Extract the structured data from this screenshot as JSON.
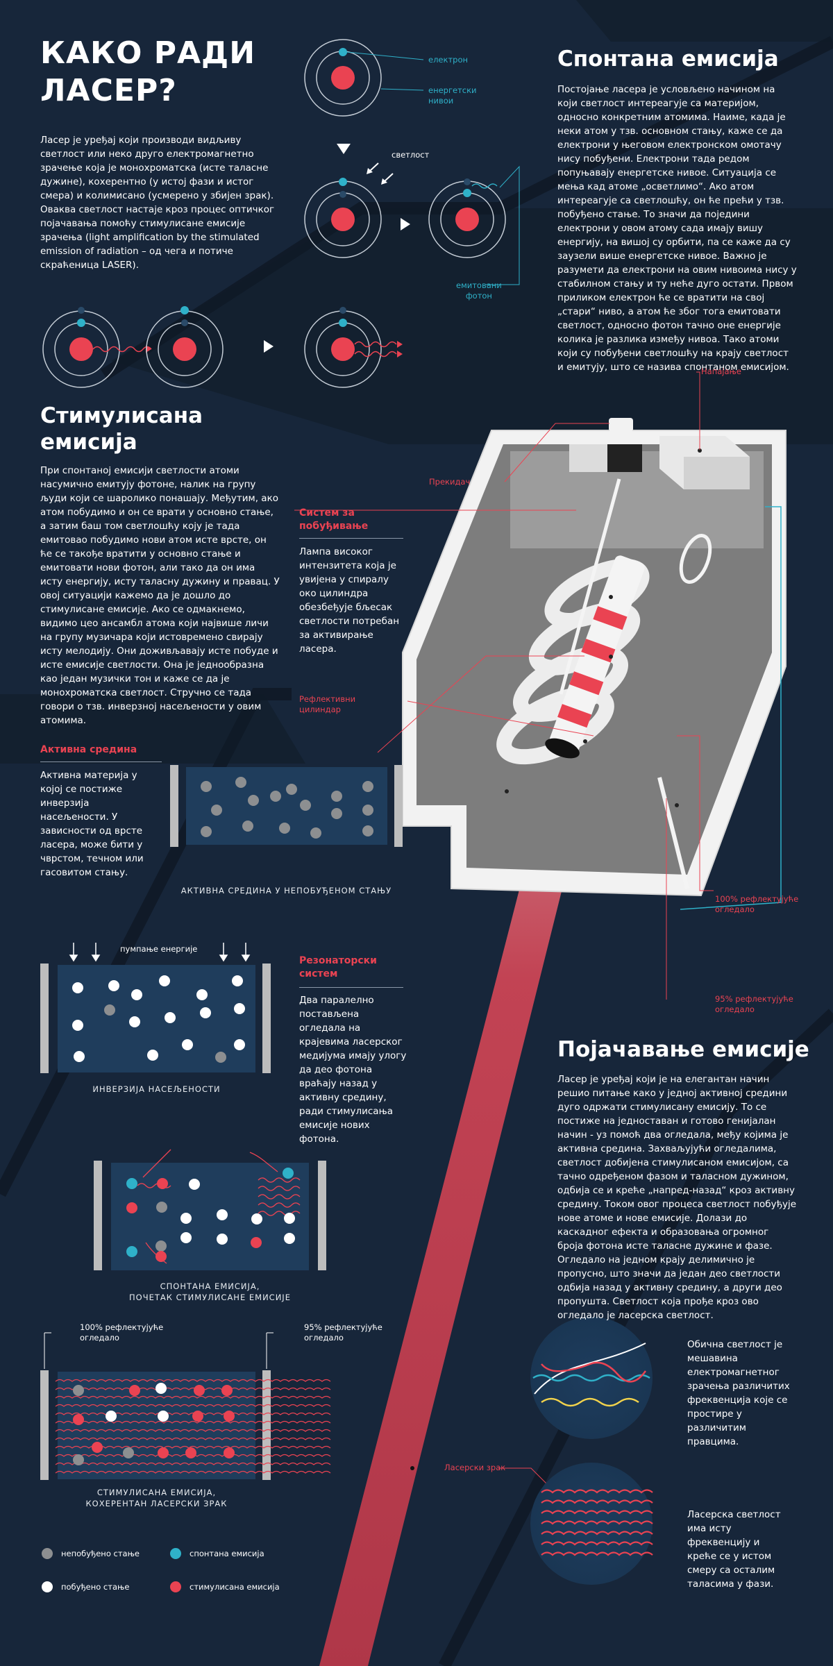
{
  "title": "КАКО РАДИ\nЛАСЕР?",
  "intro": "Ласер је уређај који производи видљиву светлост или неко друго електромагнетно зрачење која је монохроматска (исте таласне дужине), кохерентно (у истој фази и истог смера) и колимисано (усмерено у збијен зрак). Оваква светлост настаје кроз процес оптичког појачавања помоћу стимулисане емисије зрачења (light amplification by the stimulated emission of radiation – од чега и потиче скраћеница LASER).",
  "atom_labels": {
    "electron": "електрон",
    "energy_levels": "енергетски\nнивои",
    "light": "светлост",
    "emitted_photon": "емитовани\nфотон"
  },
  "spontaneous": {
    "title": "Спонтана емисија",
    "text": "Постојање ласера је условљено начином на који светлост интереагује са материјом, односно конкретним атомима. Наиме, када је неки атом у тзв. основном стању, каже се да електрони у његовом електронском омотачу нису побуђени. Електрони тада редом попуњавају енергетске нивое. Ситуација се мења кад атоме „осветлимо“. Ако атом интереагује са светлошћу, он ће прећи у тзв. побуђено стање. То значи да поједини електрони у овом атому сада имају вишу енергију, на вишој су орбити, па се каже да су заузели више енергетске нивое. Важно је разумети да електрони на овим нивоима нису у стабилном стању и ту неће дуго остати. Првом приликом електрон ће се вратити на свој „стари“ ниво, а атом ће због тога емитовати светлост, односно фотон тачно оне енергије колика је разлика између нивоа. Тако атоми који су побуђени светлошћу на крају светлост и емитују, што се назива спонтаном емисијом."
  },
  "stimulated": {
    "title": "Стимулисана\nемисија",
    "text": "При спонтаној емисији светлости атоми насумично емитују фотоне, налик на групу људи који се шаролико понашају. Међутим, ако атом побудимо и он се врати у основно стање, а затим баш том светлошћу коју је тада емитовао побудимо нови атом исте врсте, он ће се такође вратити у основно стање и емитовати нови фотон, али тако да он има исту енергију, исту таласну дужину и правац. У овој ситуацији кажемо да је дошло до стимулисане емисије. Ако се одмакнемо, видимо цео ансамбл атома који највише личи на групу музичара који истовремено свирају исту мелодију. Они доживљавају исте побуде и исте емисије светлости. Она је једнообразна као један музички тон и каже се да је монохроматска светлост. Стручно се тада говори о тзв. инверзној насељености у овим атомима."
  },
  "excitation_system": {
    "title": "Систем за\nпобуђивање",
    "text": "Лампа високог интензитета која је увијена у спиралу око цилиндра обезбеђује бљесак светлости потребан за активирање ласера."
  },
  "active_medium": {
    "title": "Активна средина",
    "text": "Активна материја у којој се постиже инверзија насељености. У зависности од врсте ласера, може бити у чврстом, течном или гасовитом стању."
  },
  "resonator": {
    "title": "Резонаторски\nсистем",
    "text": "Два паралелно постављена огледала на крајевима ласерског медијума имају улогу да део фотона враћају назад у активну средину, ради стимулисања емисије нових фотона."
  },
  "laser_labels": {
    "power": "Напајање",
    "switch": "Прекидач",
    "reflective_cylinder": "Рефлективни\nцилиндар",
    "mirror100": "100% рефлектујуће\nогледало",
    "mirror95": "95% рефлектујуће\nогледало",
    "beam": "Ласерски зрак"
  },
  "captions": {
    "unexcited": "АКТИВНА СРЕДИНА У НЕПОБУЂЕНОМ СТАЊУ",
    "pumping": "пумпање енергије",
    "inversion": "ИНВЕРЗИЈА НАСЕЉЕНОСТИ",
    "spontaneous_start": "СПОНТАНА ЕМИСИЈА,\nПОЧЕТАК СТИМУЛИСАНЕ ЕМИСИЈЕ",
    "mirror100": "100% рефлектујуће\nогледало",
    "mirror95": "95% рефлектујуће\nогледало",
    "coherent": "СТИМУЛИСАНА ЕМИСИЈА,\nКОХЕРЕНТАН ЛАСЕРСКИ ЗРАК"
  },
  "legend": [
    {
      "label": "непобуђено стање",
      "color": "#8d8f91"
    },
    {
      "label": "спонтана емисија",
      "color": "#2fb1c9"
    },
    {
      "label": "побуђено стање",
      "color": "#ffffff"
    },
    {
      "label": "стимулисана емисија",
      "color": "#ea4352"
    }
  ],
  "amplification": {
    "title": "Појачавање емисије",
    "text": "Ласер је уређај који је на елегантан начин решио питање како у једној активној средини дуго одржати стимулисану емисију. То се постиже на једноставан и готово генијалан начин - уз помоћ два огледала, међу којима је активна средина. Захваљујући огледалима, светлост добијена стимулисаном емисијом, са тачно одређеном фазом и таласном дужином, одбија се и креће „напред-назад“ кроз активну средину. Током овог процеса светлост побуђује нове атоме и нове емисије. Долази до каскадног ефекта и образовања огромног броја фотона исте таласне дужине и фазе. Огледало на једном крају делимично је пропусно, што значи да један део светлости одбија назад у активну средину, а други део пропушта. Светлост која прође кроз ово огледало је ласерска светлост."
  },
  "ordinary_light": "Обична светлост је мешавина електромагнетног зрачења различитих фреквенција које се простире у различитим правцима.",
  "laser_light": "Ласерска светлост има исту фреквенцију и креће се у истом смеру са осталим таласима у фази.",
  "colors": {
    "background": "#17263a",
    "accent_red": "#ea4352",
    "accent_cyan": "#2fb1c9",
    "panel_blue": "#1f3d5c"
  }
}
